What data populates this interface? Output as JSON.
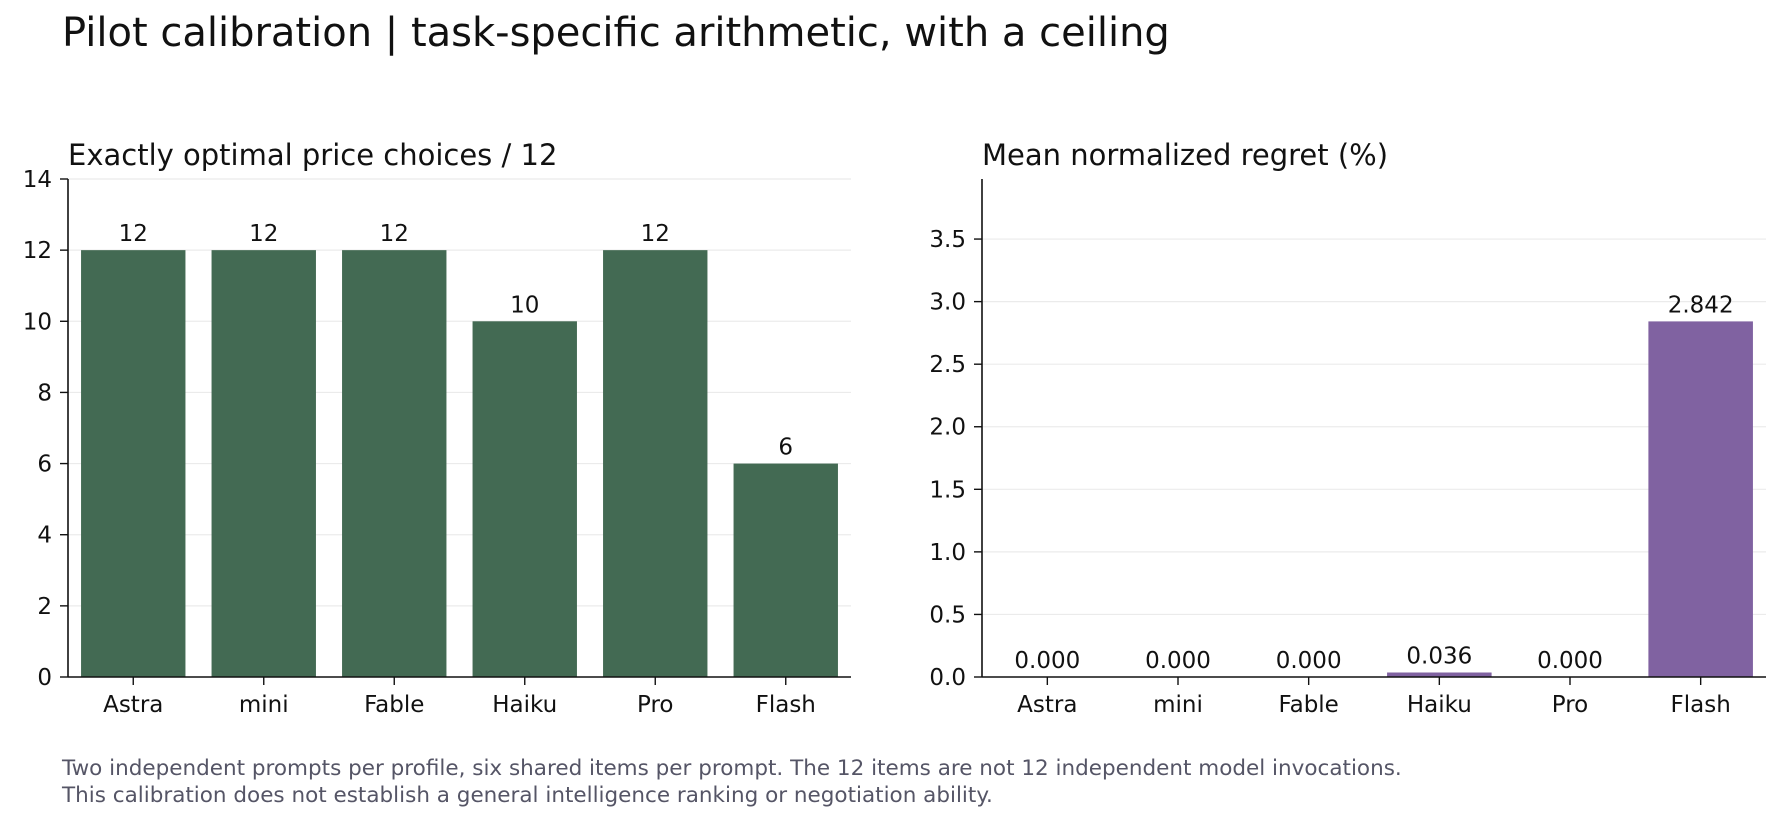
{
  "figure": {
    "title": "Pilot calibration | task-specific arithmetic, with a ceiling",
    "footnote": [
      "Two independent prompts per profile, six shared items per prompt. The 12 items are not 12 independent model invocations.",
      "This calibration does not establish a general intelligence ranking or negotiation ability."
    ]
  },
  "chart_data": [
    {
      "type": "bar",
      "title": "Exactly optimal price choices / 12",
      "categories": [
        "Astra",
        "mini",
        "Fable",
        "Haiku",
        "Pro",
        "Flash"
      ],
      "values": [
        12,
        12,
        12,
        10,
        12,
        6
      ],
      "value_labels": [
        "12",
        "12",
        "12",
        "10",
        "12",
        "6"
      ],
      "ylim": [
        0,
        14
      ],
      "yticks": [
        0,
        2,
        4,
        6,
        8,
        10,
        12,
        14
      ],
      "ytick_labels": [
        "0",
        "2",
        "4",
        "6",
        "8",
        "10",
        "12",
        "14"
      ],
      "grid": true,
      "color": "#436a53"
    },
    {
      "type": "bar",
      "title": "Mean normalized regret (%)",
      "categories": [
        "Astra",
        "mini",
        "Fable",
        "Haiku",
        "Pro",
        "Flash"
      ],
      "values": [
        0.0,
        0.0,
        0.0,
        0.036,
        0.0,
        2.842
      ],
      "value_labels": [
        "0.000",
        "0.000",
        "0.000",
        "0.036",
        "0.000",
        "2.842"
      ],
      "ylim": [
        0,
        3.98
      ],
      "yticks": [
        0.0,
        0.5,
        1.0,
        1.5,
        2.0,
        2.5,
        3.0,
        3.5
      ],
      "ytick_labels": [
        "0.0",
        "0.5",
        "1.0",
        "1.5",
        "2.0",
        "2.5",
        "3.0",
        "3.5"
      ],
      "grid": true,
      "color": "#8062a1"
    }
  ]
}
